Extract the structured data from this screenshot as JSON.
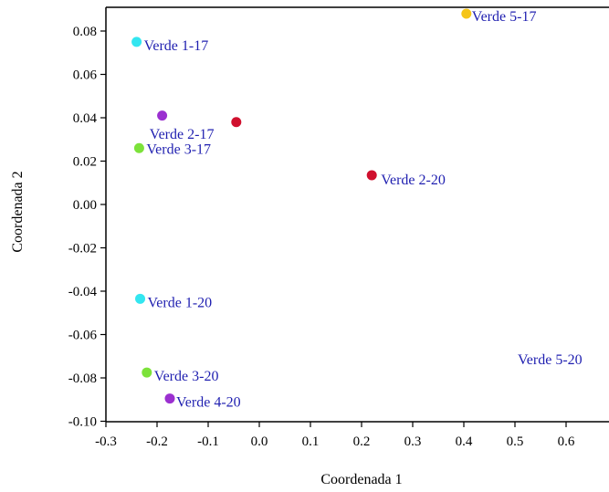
{
  "chart_data": {
    "type": "scatter",
    "title": "",
    "xlabel": "Coordenada 1",
    "ylabel": "Coordenada 2",
    "xlim": [
      -0.3,
      0.7
    ],
    "ylim": [
      -0.1,
      0.09
    ],
    "x_ticks": [
      "-0.3",
      "-0.2",
      "-0.1",
      "0.0",
      "0.1",
      "0.2",
      "0.3",
      "0.4",
      "0.5",
      "0.6"
    ],
    "y_ticks": [
      "0.08",
      "0.06",
      "0.04",
      "0.02",
      "0.00",
      "-0.02",
      "-0.04",
      "-0.06",
      "-0.08",
      "-0.10"
    ],
    "grid": false,
    "points": [
      {
        "label": "Verde 1-17",
        "x": -0.24,
        "y": 0.075,
        "color": "#33e6f0"
      },
      {
        "label": "Verde 5-17",
        "x": 0.405,
        "y": 0.088,
        "color": "#f5c518"
      },
      {
        "label": "Verde 2-17",
        "x": -0.045,
        "y": 0.038,
        "color": "#d0102e"
      },
      {
        "label": "",
        "x": -0.19,
        "y": 0.041,
        "color": "#9b30d0"
      },
      {
        "label": "Verde 3-17",
        "x": -0.235,
        "y": 0.026,
        "color": "#7ce23a"
      },
      {
        "label": "Verde 2-20",
        "x": 0.22,
        "y": 0.0135,
        "color": "#d0102e"
      },
      {
        "label": "Verde 1-20",
        "x": -0.233,
        "y": -0.0435,
        "color": "#33e6f0"
      },
      {
        "label": "Verde 5-20",
        "x": null,
        "y": -0.0715,
        "color": ""
      },
      {
        "label": "Verde 3-20",
        "x": -0.22,
        "y": -0.0775,
        "color": "#7ce23a"
      },
      {
        "label": "Verde 4-20",
        "x": -0.175,
        "y": -0.0895,
        "color": "#9b30d0"
      }
    ]
  }
}
